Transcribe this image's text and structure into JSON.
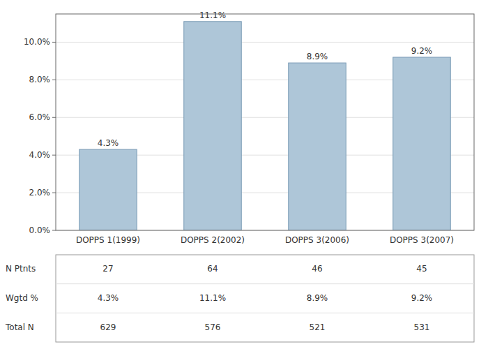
{
  "chart_data": {
    "type": "bar",
    "categories": [
      "DOPPS 1(1999)",
      "DOPPS 2(2002)",
      "DOPPS 3(2006)",
      "DOPPS 3(2007)"
    ],
    "values": [
      4.3,
      11.1,
      8.9,
      9.2
    ],
    "value_labels": [
      "4.3%",
      "11.1%",
      "8.9%",
      "9.2%"
    ],
    "data_labels": true,
    "color": "#aec6d8",
    "ylim": [
      0,
      11.5
    ],
    "yticks": [
      {
        "value": 0.0,
        "label": "0.0%"
      },
      {
        "value": 2.0,
        "label": "2.0%"
      },
      {
        "value": 4.0,
        "label": "4.0%"
      },
      {
        "value": 6.0,
        "label": "6.0%"
      },
      {
        "value": 8.0,
        "label": "8.0%"
      },
      {
        "value": 10.0,
        "label": "10.0%"
      }
    ],
    "grid": true,
    "table": [
      {
        "name": "N Ptnts",
        "values": [
          27,
          64,
          46,
          45
        ]
      },
      {
        "name": "Wgtd %",
        "values": [
          4.3,
          11.1,
          8.9,
          9.2
        ],
        "value_labels": [
          "4.3%",
          "11.1%",
          "8.9%",
          "9.2%"
        ]
      },
      {
        "name": "Total N",
        "values": [
          629,
          576,
          521,
          531
        ]
      }
    ]
  }
}
